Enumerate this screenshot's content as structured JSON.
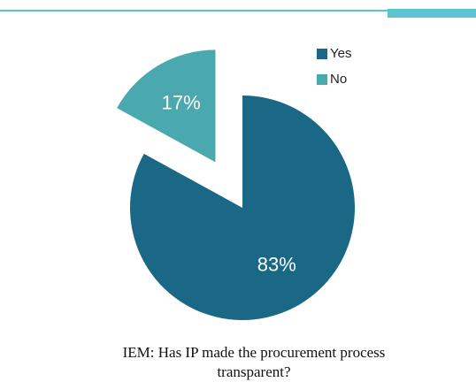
{
  "chart_data": {
    "type": "pie",
    "title": "IEM: Has IP made the procurement process transparent?",
    "categories": [
      "Yes",
      "No"
    ],
    "values": [
      83,
      17
    ],
    "value_labels": [
      "83%",
      "17%"
    ],
    "colors": [
      "#1b6886",
      "#4aa9af"
    ],
    "exploded": [
      false,
      true
    ],
    "legend": "top-right"
  }
}
